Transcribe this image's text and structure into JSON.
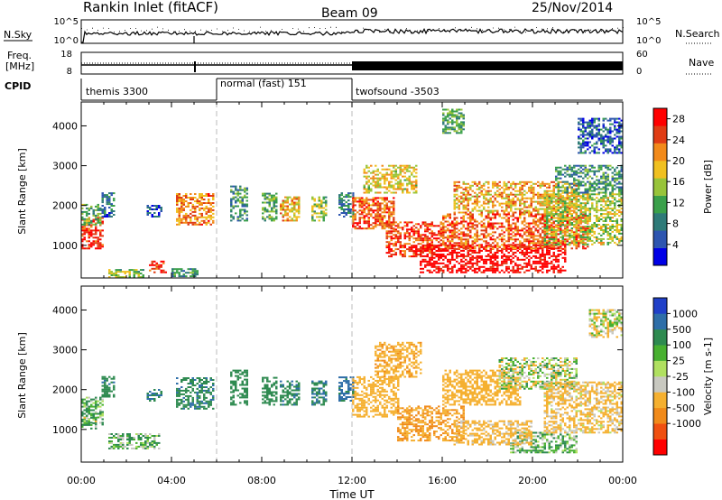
{
  "header": {
    "station": "Rankin Inlet (fitACF)",
    "beam": "Beam 09",
    "date": "25/Nov/2014"
  },
  "nsky_panel": {
    "left_label": "N.Sky",
    "left_ticks": [
      "10^5",
      "10^0"
    ],
    "right_label": "N.Search",
    "right_ticks": [
      "10^5",
      "10^0"
    ]
  },
  "freq_panel": {
    "left_label_line1": "Freq.",
    "left_label_line2": "[MHz]",
    "left_ticks": [
      "18",
      "8"
    ],
    "right_label": "Nave",
    "right_ticks": [
      "60",
      "0"
    ]
  },
  "cpid": {
    "label": "CPID",
    "segments": [
      {
        "name": "themis 3300",
        "start_hour": 0,
        "end_hour": 6
      },
      {
        "name": "normal (fast) 151",
        "start_hour": 6,
        "end_hour": 12
      },
      {
        "name": "twofsound -3503",
        "start_hour": 12,
        "end_hour": 24
      }
    ]
  },
  "x_axis": {
    "label": "Time UT",
    "ticks": [
      "00:00",
      "04:00",
      "08:00",
      "12:00",
      "16:00",
      "20:00",
      "00:00"
    ]
  },
  "power_colorbar": {
    "label": "Power [dB]",
    "ticks": [
      "4",
      "8",
      "12",
      "16",
      "20",
      "24",
      "28"
    ],
    "colors": [
      "#0000e6",
      "#2d55b0",
      "#2e7a78",
      "#3aa04a",
      "#98c43a",
      "#f0c020",
      "#f28a1a",
      "#e03c14",
      "#ff0000"
    ]
  },
  "velocity_colorbar": {
    "label": "Velocity [m s-1]",
    "ticks": [
      "1000",
      "500",
      "100",
      "25",
      "-25",
      "-100",
      "-500",
      "-1000"
    ],
    "colors": [
      "#2040c8",
      "#2e6ea8",
      "#2e8a50",
      "#48b030",
      "#b0e060",
      "#c8c8c0",
      "#f5b030",
      "#f08a1a",
      "#f05010",
      "#ff0000"
    ]
  },
  "chart_data": [
    {
      "type": "heatmap",
      "title": "Power",
      "ylabel": "Slant Range [km]",
      "xlabel": "",
      "y_ticks": [
        1000,
        2000,
        3000,
        4000
      ],
      "ylim": [
        180,
        4600
      ],
      "xlim_hours": [
        0,
        24
      ],
      "clim_db": [
        0,
        30
      ],
      "regions": [
        {
          "t0": 0.0,
          "t1": 0.9,
          "r0": 900,
          "r1": 1700,
          "value": 26
        },
        {
          "t0": 0.0,
          "t1": 0.8,
          "r0": 1500,
          "r1": 2000,
          "value": 12
        },
        {
          "t0": 0.9,
          "t1": 1.5,
          "r0": 1700,
          "r1": 2300,
          "value": 8
        },
        {
          "t0": 1.2,
          "t1": 2.8,
          "r0": 180,
          "r1": 400,
          "value": 14
        },
        {
          "t0": 2.9,
          "t1": 3.6,
          "r0": 1700,
          "r1": 2000,
          "value": 6
        },
        {
          "t0": 3.0,
          "t1": 3.8,
          "r0": 300,
          "r1": 600,
          "value": 26
        },
        {
          "t0": 4.2,
          "t1": 5.8,
          "r0": 1500,
          "r1": 2300,
          "value": 22
        },
        {
          "t0": 4.0,
          "t1": 5.2,
          "r0": 200,
          "r1": 400,
          "value": 10
        },
        {
          "t0": 6.6,
          "t1": 7.3,
          "r0": 1600,
          "r1": 2500,
          "value": 10
        },
        {
          "t0": 8.0,
          "t1": 8.6,
          "r0": 1600,
          "r1": 2300,
          "value": 12
        },
        {
          "t0": 8.8,
          "t1": 9.6,
          "r0": 1600,
          "r1": 2200,
          "value": 20
        },
        {
          "t0": 10.2,
          "t1": 10.8,
          "r0": 1600,
          "r1": 2200,
          "value": 14
        },
        {
          "t0": 11.4,
          "t1": 12.0,
          "r0": 1700,
          "r1": 2300,
          "value": 8
        },
        {
          "t0": 12.0,
          "t1": 13.8,
          "r0": 1400,
          "r1": 2200,
          "value": 24
        },
        {
          "t0": 12.5,
          "t1": 14.8,
          "r0": 2300,
          "r1": 3000,
          "value": 18
        },
        {
          "t0": 13.5,
          "t1": 16.0,
          "r0": 700,
          "r1": 1600,
          "value": 26
        },
        {
          "t0": 15.0,
          "t1": 21.5,
          "r0": 300,
          "r1": 1000,
          "value": 30
        },
        {
          "t0": 16.0,
          "t1": 22.5,
          "r0": 900,
          "r1": 1800,
          "value": 24
        },
        {
          "t0": 16.5,
          "t1": 22.0,
          "r0": 1800,
          "r1": 2600,
          "value": 20
        },
        {
          "t0": 20.5,
          "t1": 24.0,
          "r0": 1000,
          "r1": 2300,
          "value": 16
        },
        {
          "t0": 21.0,
          "t1": 24.0,
          "r0": 2300,
          "r1": 3000,
          "value": 10
        },
        {
          "t0": 22.0,
          "t1": 24.0,
          "r0": 3300,
          "r1": 4200,
          "value": 6
        },
        {
          "t0": 16.0,
          "t1": 17.0,
          "r0": 3800,
          "r1": 4400,
          "value": 12
        }
      ]
    },
    {
      "type": "heatmap",
      "title": "Velocity",
      "ylabel": "Slant Range [km]",
      "xlabel": "Time UT",
      "y_ticks": [
        1000,
        2000,
        3000,
        4000
      ],
      "ylim": [
        180,
        4600
      ],
      "xlim_hours": [
        0,
        24
      ],
      "clim_ms": [
        -1000,
        1000
      ],
      "regions": [
        {
          "t0": 0.0,
          "t1": 0.9,
          "r0": 1100,
          "r1": 1800,
          "value": 100
        },
        {
          "t0": 0.0,
          "t1": 0.7,
          "r0": 1000,
          "r1": 1300,
          "value": 40
        },
        {
          "t0": 0.9,
          "t1": 1.5,
          "r0": 1800,
          "r1": 2300,
          "value": 400
        },
        {
          "t0": 1.2,
          "t1": 3.5,
          "r0": 500,
          "r1": 900,
          "value": 60
        },
        {
          "t0": 2.9,
          "t1": 3.6,
          "r0": 1700,
          "r1": 2000,
          "value": 500
        },
        {
          "t0": 4.2,
          "t1": 5.8,
          "r0": 1500,
          "r1": 2300,
          "value": 400
        },
        {
          "t0": 6.6,
          "t1": 7.3,
          "r0": 1600,
          "r1": 2500,
          "value": 300
        },
        {
          "t0": 8.0,
          "t1": 8.6,
          "r0": 1600,
          "r1": 2300,
          "value": 300
        },
        {
          "t0": 8.8,
          "t1": 9.6,
          "r0": 1600,
          "r1": 2200,
          "value": 400
        },
        {
          "t0": 10.2,
          "t1": 10.8,
          "r0": 1600,
          "r1": 2200,
          "value": 500
        },
        {
          "t0": 11.4,
          "t1": 12.0,
          "r0": 1700,
          "r1": 2300,
          "value": 600
        },
        {
          "t0": 12.0,
          "t1": 14.0,
          "r0": 1300,
          "r1": 2300,
          "value": -300
        },
        {
          "t0": 13.0,
          "t1": 15.0,
          "r0": 2300,
          "r1": 3200,
          "value": -400
        },
        {
          "t0": 14.0,
          "t1": 17.0,
          "r0": 700,
          "r1": 1600,
          "value": -500
        },
        {
          "t0": 16.0,
          "t1": 19.5,
          "r0": 1600,
          "r1": 2500,
          "value": -300
        },
        {
          "t0": 18.5,
          "t1": 22.0,
          "r0": 2000,
          "r1": 2800,
          "value": -10
        },
        {
          "t0": 19.0,
          "t1": 22.0,
          "r0": 400,
          "r1": 900,
          "value": 50
        },
        {
          "t0": 20.5,
          "t1": 24.0,
          "r0": 900,
          "r1": 2200,
          "value": -150
        },
        {
          "t0": 16.5,
          "t1": 20.0,
          "r0": 600,
          "r1": 1200,
          "value": -200
        },
        {
          "t0": 22.5,
          "t1": 24.0,
          "r0": 3300,
          "r1": 4000,
          "value": -60
        }
      ]
    }
  ]
}
